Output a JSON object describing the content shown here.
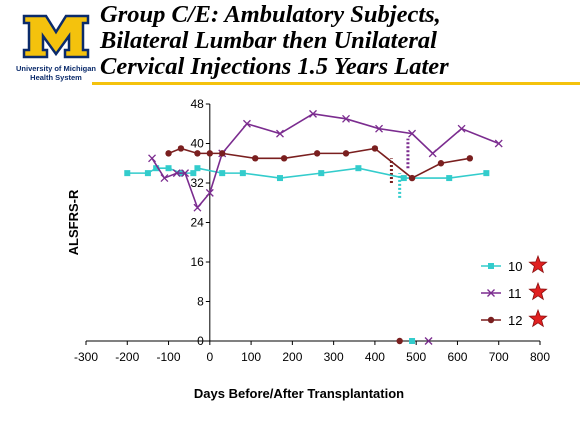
{
  "header": {
    "title_lines": [
      "Group C/E: Ambulatory Subjects,",
      "Bilateral Lumbar then Unilateral",
      "Cervical Injections 1.5 Years Later"
    ],
    "logo": {
      "line1": "University of Michigan",
      "line2": "Health System",
      "colors": {
        "block_m": "#f4c20d",
        "outline": "#0b2b6b"
      }
    },
    "accent_rule_color": "#f4c20d"
  },
  "chart_data": {
    "type": "line",
    "title": "",
    "xlabel": "Days Before/After Transplantation",
    "ylabel": "ALSFRS-R",
    "xlim": [
      -300,
      800
    ],
    "ylim": [
      0,
      48
    ],
    "xticks": [
      -300,
      -200,
      -100,
      0,
      100,
      200,
      300,
      400,
      500,
      600,
      700,
      800
    ],
    "yticks": [
      0,
      8,
      16,
      24,
      32,
      40,
      48
    ],
    "grid": false,
    "legend_position": "right",
    "series": [
      {
        "name": "10",
        "color": "#33cccc",
        "marker": "square",
        "x": [
          -200,
          -150,
          -130,
          -100,
          -70,
          -40,
          -30,
          30,
          80,
          170,
          270,
          360,
          470,
          580,
          670
        ],
        "y": [
          34,
          34,
          35,
          35,
          34,
          34,
          35,
          34,
          34,
          33,
          34,
          35,
          33,
          33,
          34
        ],
        "post_point": {
          "x": 490,
          "y": 0
        }
      },
      {
        "name": "11",
        "color": "#7b2c8f",
        "marker": "x",
        "x": [
          -140,
          -110,
          -80,
          -60,
          -30,
          0,
          30,
          90,
          170,
          250,
          330,
          410,
          490,
          540,
          610,
          700
        ],
        "y": [
          37,
          33,
          34,
          34,
          27,
          30,
          38,
          44,
          42,
          46,
          45,
          43,
          42,
          38,
          43,
          40
        ],
        "post_point": {
          "x": 530,
          "y": 0
        }
      },
      {
        "name": "12",
        "color": "#7a1f1f",
        "marker": "circle",
        "x": [
          -100,
          -70,
          -30,
          0,
          30,
          110,
          180,
          260,
          330,
          400,
          490,
          560,
          630
        ],
        "y": [
          38,
          39,
          38,
          38,
          38,
          37,
          37,
          38,
          38,
          39,
          33,
          36,
          37
        ],
        "post_point": {
          "x": 460,
          "y": 0
        }
      }
    ],
    "annotations": [
      {
        "type": "dotted-vline",
        "x": 440,
        "y_from": 32,
        "y_to": 37,
        "color": "#7a1f1f"
      },
      {
        "type": "dotted-vline",
        "x": 460,
        "y_from": 29,
        "y_to": 34,
        "color": "#33cccc"
      },
      {
        "type": "dotted-vline",
        "x": 480,
        "y_from": 35,
        "y_to": 41,
        "color": "#7b2c8f"
      }
    ],
    "legend": [
      {
        "label": "10",
        "star": true
      },
      {
        "label": "11",
        "star": true
      },
      {
        "label": "12",
        "star": true
      }
    ],
    "star_color": "#e02020"
  }
}
